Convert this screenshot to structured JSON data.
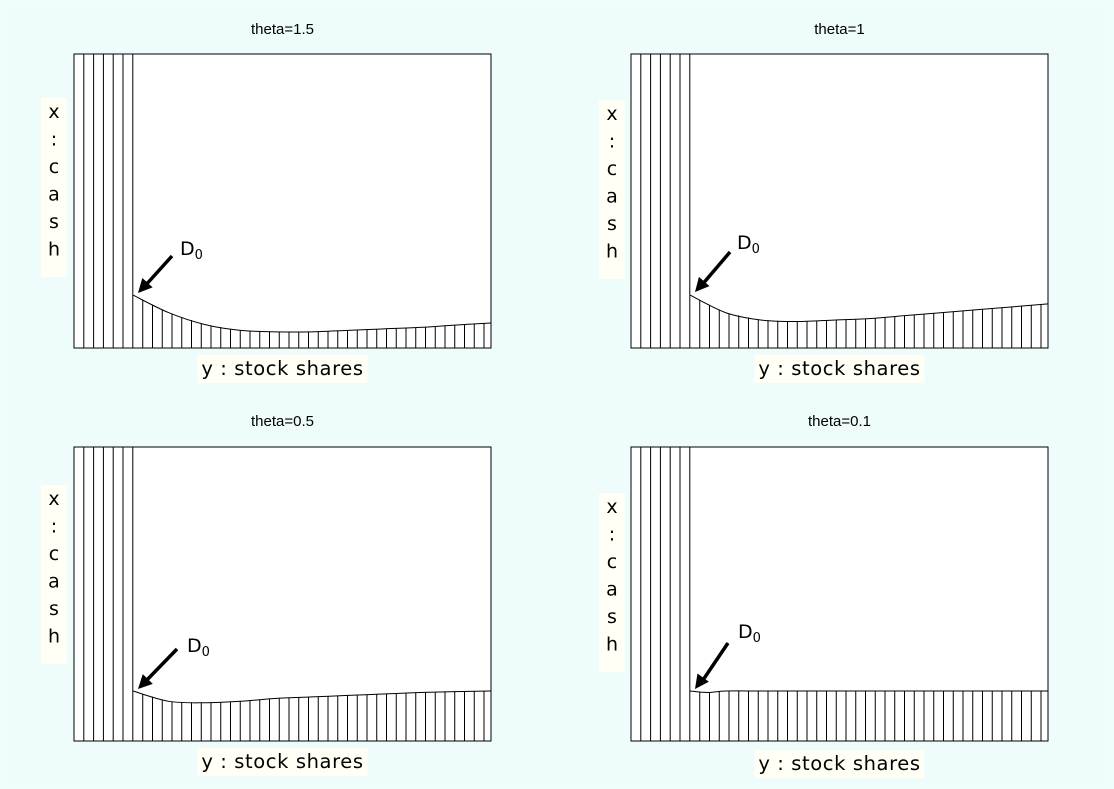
{
  "chart_data": [
    {
      "type": "line",
      "title": "theta=1.5",
      "xlabel": "y : stock shares",
      "ylabel": "x : cash",
      "annotation": {
        "text": "D",
        "subscript": "0"
      },
      "curve": [
        [
          0,
          0.18
        ],
        [
          0.1,
          0.12
        ],
        [
          0.2,
          0.08
        ],
        [
          0.3,
          0.06
        ],
        [
          0.4,
          0.055
        ],
        [
          0.5,
          0.055
        ],
        [
          0.6,
          0.06
        ],
        [
          0.7,
          0.065
        ],
        [
          0.8,
          0.07
        ],
        [
          0.9,
          0.078
        ],
        [
          1.0,
          0.085
        ]
      ],
      "hatch": true
    },
    {
      "type": "line",
      "title": "theta=1",
      "xlabel": "y : stock shares",
      "ylabel": "x : cash",
      "annotation": {
        "text": "D",
        "subscript": "0"
      },
      "curve": [
        [
          0,
          0.18
        ],
        [
          0.1,
          0.12
        ],
        [
          0.2,
          0.095
        ],
        [
          0.3,
          0.09
        ],
        [
          0.4,
          0.095
        ],
        [
          0.5,
          0.1
        ],
        [
          0.6,
          0.11
        ],
        [
          0.7,
          0.12
        ],
        [
          0.8,
          0.13
        ],
        [
          0.9,
          0.14
        ],
        [
          1.0,
          0.15
        ]
      ],
      "hatch": true
    },
    {
      "type": "line",
      "title": "theta=0.5",
      "xlabel": "y : stock shares",
      "ylabel": "x : cash",
      "annotation": {
        "text": "D",
        "subscript": "0"
      },
      "curve": [
        [
          0,
          0.17
        ],
        [
          0.1,
          0.135
        ],
        [
          0.2,
          0.13
        ],
        [
          0.3,
          0.135
        ],
        [
          0.4,
          0.145
        ],
        [
          0.5,
          0.15
        ],
        [
          0.6,
          0.155
        ],
        [
          0.7,
          0.16
        ],
        [
          0.8,
          0.165
        ],
        [
          0.9,
          0.168
        ],
        [
          1.0,
          0.17
        ]
      ],
      "hatch": true
    },
    {
      "type": "line",
      "title": "theta=0.1",
      "xlabel": "y : stock shares",
      "ylabel": "x : cash",
      "annotation": {
        "text": "D",
        "subscript": "0"
      },
      "curve": [
        [
          0,
          0.17
        ],
        [
          0.05,
          0.165
        ],
        [
          0.1,
          0.17
        ],
        [
          0.2,
          0.17
        ],
        [
          0.3,
          0.17
        ],
        [
          0.4,
          0.17
        ],
        [
          0.5,
          0.17
        ],
        [
          0.6,
          0.17
        ],
        [
          0.7,
          0.17
        ],
        [
          0.8,
          0.17
        ],
        [
          0.9,
          0.17
        ],
        [
          1.0,
          0.17
        ]
      ],
      "hatch": true
    }
  ]
}
